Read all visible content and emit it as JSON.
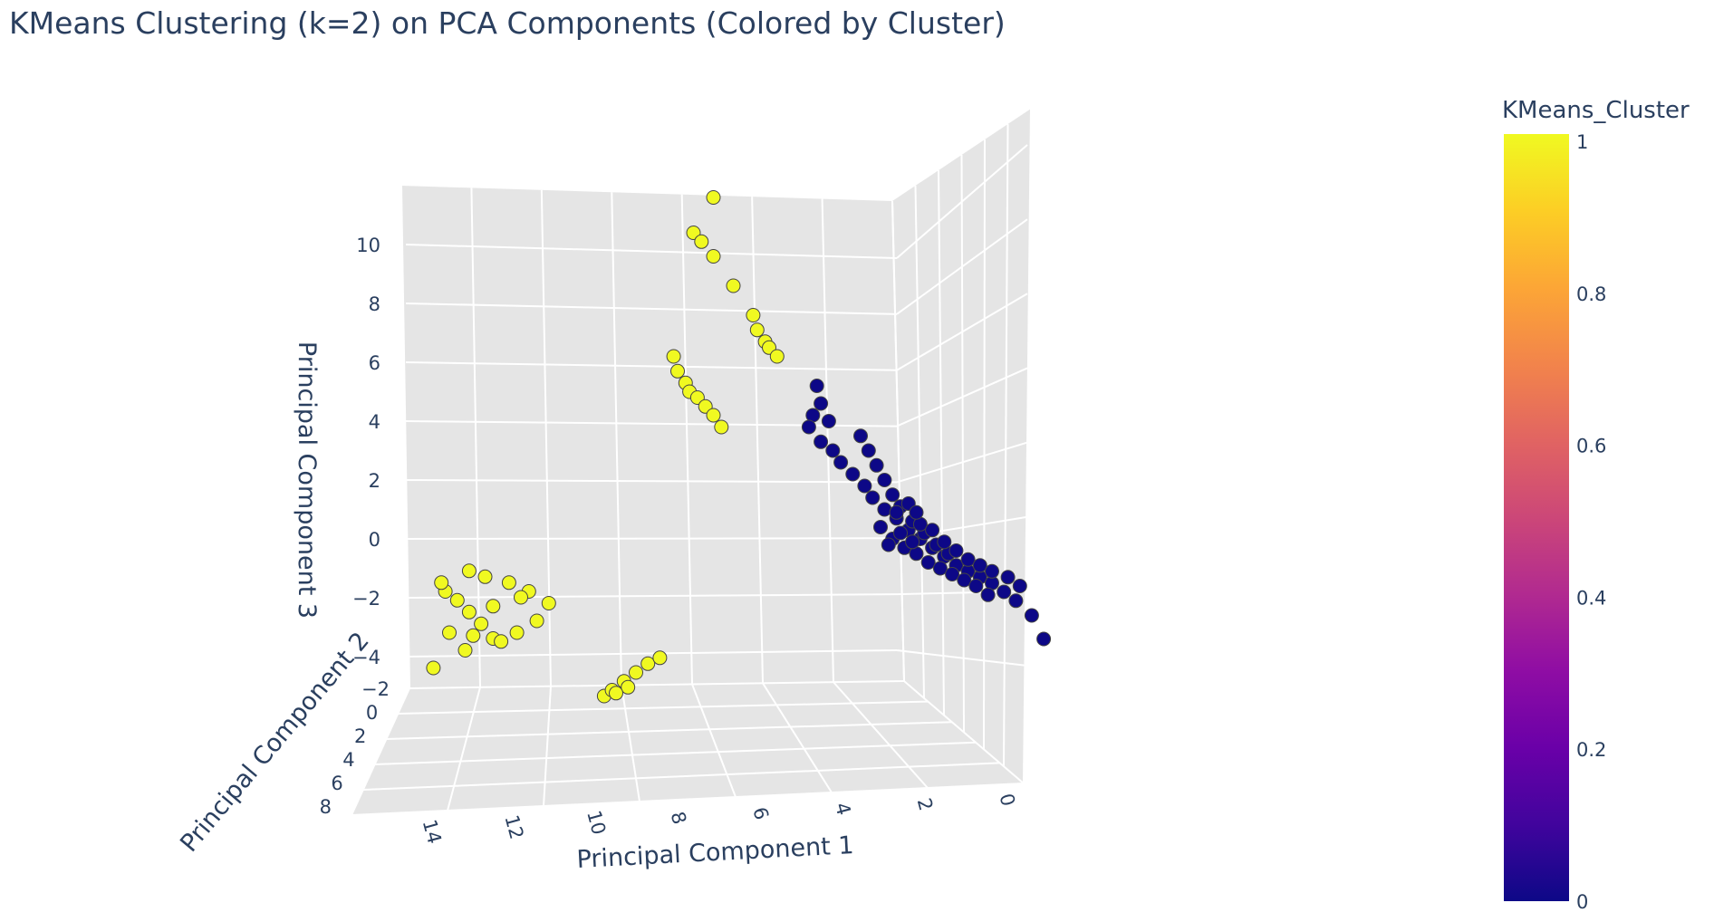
{
  "chart_data": {
    "type": "scatter3d",
    "title": "KMeans Clustering (k=2) on PCA Components (Colored by Cluster)",
    "xlabel": "Principal Component 1",
    "ylabel": "Principal Component 2",
    "zlabel": "Principal Component 3",
    "x_ticks": [
      "14",
      "12",
      "10",
      "8",
      "6",
      "4",
      "2",
      "0"
    ],
    "y_ticks": [
      "−2",
      "0",
      "2",
      "4",
      "6",
      "8"
    ],
    "z_ticks": [
      "10",
      "8",
      "6",
      "4",
      "2",
      "0",
      "−2",
      "−4"
    ],
    "colorbar": {
      "title": "KMeans_Cluster",
      "ticks": [
        "1",
        "0.8",
        "0.6",
        "0.4",
        "0.2",
        "0"
      ],
      "range": [
        0,
        1
      ],
      "colorscale": "Plasma"
    },
    "colors": {
      "cluster_1": "#f0f921",
      "cluster_0": "#0d0887",
      "grid_bg": "#e5e5e5"
    },
    "series": [
      {
        "cluster": 1,
        "points": [
          [
            7.0,
            0,
            11.6
          ],
          [
            7.5,
            0,
            10.4
          ],
          [
            7.3,
            0,
            10.1
          ],
          [
            7.0,
            0,
            9.6
          ],
          [
            6.5,
            0,
            8.6
          ],
          [
            6.0,
            0,
            7.6
          ],
          [
            5.9,
            0,
            7.1
          ],
          [
            5.7,
            0,
            6.7
          ],
          [
            5.6,
            0,
            6.5
          ],
          [
            5.4,
            0,
            6.2
          ],
          [
            8.0,
            0,
            6.2
          ],
          [
            7.9,
            0,
            5.7
          ],
          [
            7.7,
            0,
            5.3
          ],
          [
            7.6,
            0,
            5.0
          ],
          [
            7.4,
            0,
            4.8
          ],
          [
            7.2,
            0,
            4.5
          ],
          [
            7.0,
            0,
            4.2
          ],
          [
            6.8,
            0,
            3.8
          ],
          [
            13.6,
            1,
            -1.6
          ],
          [
            13.3,
            1,
            -1.9
          ],
          [
            13.0,
            1,
            -2.3
          ],
          [
            12.7,
            1,
            -2.7
          ],
          [
            12.4,
            1,
            -3.2
          ],
          [
            13.1,
            1,
            -3.6
          ],
          [
            13.5,
            1,
            -3.0
          ],
          [
            12.9,
            1,
            -3.1
          ],
          [
            12.2,
            1,
            -3.3
          ],
          [
            11.8,
            1,
            -3.0
          ],
          [
            11.3,
            1,
            -2.6
          ],
          [
            11.0,
            1,
            -2.0
          ],
          [
            11.5,
            1,
            -1.6
          ],
          [
            12.0,
            1,
            -1.3
          ],
          [
            12.6,
            1,
            -1.1
          ],
          [
            13.0,
            1,
            -0.9
          ],
          [
            13.7,
            1,
            -1.3
          ],
          [
            13.9,
            1,
            -4.2
          ],
          [
            11.7,
            1,
            -1.8
          ],
          [
            12.4,
            1,
            -2.1
          ],
          [
            9.2,
            4,
            -4.6
          ],
          [
            9.0,
            4,
            -4.4
          ],
          [
            8.7,
            4,
            -4.1
          ],
          [
            8.4,
            4,
            -3.8
          ],
          [
            8.1,
            4,
            -3.5
          ],
          [
            8.6,
            4,
            -4.3
          ],
          [
            8.9,
            4,
            -4.5
          ],
          [
            7.8,
            4,
            -3.3
          ]
        ]
      },
      {
        "cluster": 0,
        "points": [
          [
            4.4,
            0,
            5.2
          ],
          [
            4.3,
            0,
            4.6
          ],
          [
            4.5,
            0,
            4.2
          ],
          [
            4.1,
            0,
            4.0
          ],
          [
            4.6,
            0,
            3.8
          ],
          [
            4.3,
            0,
            3.3
          ],
          [
            4.0,
            0,
            3.0
          ],
          [
            3.8,
            0,
            2.6
          ],
          [
            3.5,
            0,
            2.2
          ],
          [
            3.2,
            0,
            1.8
          ],
          [
            3.0,
            0,
            1.4
          ],
          [
            2.7,
            0,
            1.0
          ],
          [
            2.4,
            0,
            0.7
          ],
          [
            2.1,
            0,
            0.3
          ],
          [
            1.8,
            0,
            0.0
          ],
          [
            1.5,
            0,
            -0.3
          ],
          [
            1.2,
            0,
            -0.6
          ],
          [
            0.9,
            0,
            -0.9
          ],
          [
            0.6,
            0,
            -1.1
          ],
          [
            0.3,
            0,
            -1.3
          ],
          [
            0.0,
            0,
            -1.5
          ],
          [
            -0.3,
            0,
            -1.8
          ],
          [
            -0.6,
            0,
            -2.1
          ],
          [
            -1.0,
            0,
            -2.6
          ],
          [
            -1.3,
            0,
            -3.4
          ],
          [
            3.3,
            0,
            3.5
          ],
          [
            3.1,
            0,
            3.0
          ],
          [
            2.9,
            0,
            2.5
          ],
          [
            2.7,
            0,
            2.0
          ],
          [
            2.5,
            0,
            1.5
          ],
          [
            2.3,
            0,
            1.1
          ],
          [
            2.0,
            0,
            0.6
          ],
          [
            1.7,
            0,
            0.2
          ],
          [
            1.4,
            0,
            -0.2
          ],
          [
            1.1,
            0,
            -0.5
          ],
          [
            2.8,
            0,
            0.4
          ],
          [
            2.5,
            0,
            0.0
          ],
          [
            2.2,
            0,
            -0.3
          ],
          [
            1.9,
            0,
            -0.5
          ],
          [
            1.6,
            0,
            -0.8
          ],
          [
            1.3,
            0,
            -1.0
          ],
          [
            1.0,
            0,
            -1.2
          ],
          [
            0.7,
            0,
            -1.4
          ],
          [
            0.4,
            0,
            -1.6
          ],
          [
            0.1,
            0,
            -1.9
          ],
          [
            2.6,
            0,
            -0.2
          ],
          [
            2.3,
            0,
            0.2
          ],
          [
            2.0,
            0,
            -0.1
          ],
          [
            1.8,
            0,
            0.5
          ],
          [
            1.5,
            0,
            0.3
          ],
          [
            1.2,
            0,
            -0.1
          ],
          [
            0.9,
            0,
            -0.4
          ],
          [
            0.6,
            0,
            -0.7
          ],
          [
            0.3,
            0,
            -0.9
          ],
          [
            0.0,
            0,
            -1.1
          ],
          [
            -0.4,
            0,
            -1.3
          ],
          [
            -0.7,
            0,
            -1.6
          ],
          [
            2.4,
            0,
            0.9
          ],
          [
            2.1,
            0,
            1.2
          ],
          [
            1.9,
            0,
            0.9
          ]
        ]
      }
    ]
  }
}
